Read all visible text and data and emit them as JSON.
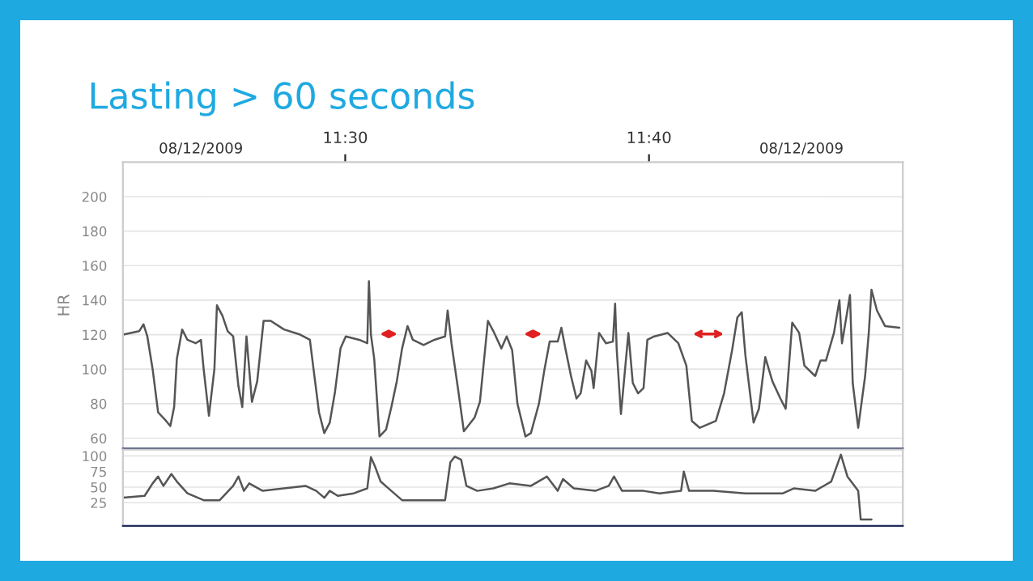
{
  "chart_data": [
    {
      "type": "line",
      "title": "Lasting > 60 seconds",
      "ylabel": "HR",
      "x": [
        11.3781,
        11.3869,
        11.3893,
        11.3914,
        11.3943,
        11.3973,
        11.4017,
        11.404,
        11.4061,
        11.4076,
        11.4105,
        11.4134,
        11.4179,
        11.4208,
        11.4223,
        11.4252,
        11.4282,
        11.4296,
        11.4326,
        11.4355,
        11.4385,
        11.4414,
        11.4435,
        11.4458,
        11.4488,
        11.4517,
        11.4552,
        11.4591,
        11.4664,
        11.4753,
        11.4806,
        11.4826,
        11.4856,
        11.4885,
        11.4915,
        11.4944,
        11.4974,
        11.5003,
        11.5077,
        11.5121,
        11.513,
        11.5141,
        11.5159,
        11.5188,
        11.5224,
        11.5253,
        11.5283,
        11.5312,
        11.5342,
        11.5371,
        11.543,
        11.5489,
        11.5548,
        11.5562,
        11.5583,
        11.5621,
        11.5651,
        11.571,
        11.5739,
        11.5783,
        11.5813,
        11.5857,
        11.5886,
        11.5916,
        11.5945,
        11.5989,
        11.6019,
        11.6063,
        11.6092,
        11.6122,
        11.6166,
        11.6186,
        11.621,
        11.6239,
        11.6269,
        11.6292,
        11.6322,
        11.6351,
        11.6363,
        11.6393,
        11.6431,
        11.6469,
        11.6481,
        11.649,
        11.6513,
        11.6554,
        11.6578,
        11.6607,
        11.6637,
        11.6658,
        11.6696,
        11.6769,
        11.6828,
        11.6872,
        11.6902,
        11.6946,
        11.7034,
        11.7079,
        11.7123,
        11.7152,
        11.7176,
        11.7196,
        11.7241,
        11.727,
        11.7305,
        11.7344,
        11.7388,
        11.7417,
        11.7453,
        11.7491,
        11.752,
        11.7579,
        11.7608,
        11.7638,
        11.7682,
        11.7712,
        11.7726,
        11.7756,
        11.777,
        11.7785,
        11.7815,
        11.7853,
        11.7873,
        11.7888,
        11.7918,
        11.7962,
        11.8041
      ],
      "series": [
        {
          "color": "#555555",
          "values": [
            120,
            122,
            126,
            119,
            100,
            75,
            70,
            67,
            78,
            106,
            123,
            117,
            115,
            117,
            100,
            73,
            100,
            137,
            131,
            122,
            119,
            90,
            78,
            119,
            81,
            93,
            128,
            128,
            123,
            120,
            117,
            100,
            75,
            63,
            69,
            87,
            112,
            119,
            117,
            115,
            151,
            120,
            106,
            61,
            65,
            78,
            93,
            112,
            125,
            117,
            114,
            117,
            119,
            134,
            115,
            87,
            64,
            72,
            81,
            128,
            122,
            112,
            119,
            111,
            80,
            61,
            63,
            80,
            99,
            116,
            116,
            124,
            111,
            96,
            83,
            86,
            105,
            99,
            89,
            121,
            115,
            116,
            138,
            111,
            74,
            121,
            92,
            86,
            89,
            117,
            119,
            121,
            115,
            102,
            70,
            66,
            70,
            86,
            111,
            130,
            133,
            108,
            69,
            77,
            107,
            93,
            83,
            77,
            127,
            121,
            102,
            96,
            105,
            105,
            121,
            140,
            115,
            134,
            143,
            92,
            66,
            96,
            121,
            146,
            134,
            125,
            124
          ]
        }
      ],
      "xlim": [
        11.378,
        11.806
      ],
      "ylim": [
        54,
        220
      ],
      "xticks": [
        {
          "value": 11.5,
          "label": "11:30"
        },
        {
          "value": 11.6667,
          "label": "11:40"
        }
      ],
      "yticks": [
        60,
        80,
        100,
        120,
        140,
        160,
        180,
        200
      ],
      "grid": "y",
      "annotations": [
        "08/12/2009",
        "08/12/2009"
      ]
    },
    {
      "type": "line",
      "x": [
        11.3781,
        11.3899,
        11.3943,
        11.3973,
        11.4002,
        11.4046,
        11.4076,
        11.4134,
        11.4223,
        11.4311,
        11.4385,
        11.4414,
        11.4444,
        11.4473,
        11.4547,
        11.4664,
        11.4782,
        11.4841,
        11.4885,
        11.4915,
        11.4959,
        11.5047,
        11.5121,
        11.5141,
        11.5165,
        11.5194,
        11.5253,
        11.5312,
        11.5548,
        11.5577,
        11.5601,
        11.5636,
        11.5665,
        11.5724,
        11.5813,
        11.5901,
        11.6019,
        11.6107,
        11.6166,
        11.6195,
        11.6254,
        11.6372,
        11.6446,
        11.6475,
        11.6519,
        11.6637,
        11.6725,
        11.6843,
        11.6858,
        11.6887,
        11.702,
        11.7196,
        11.7402,
        11.7461,
        11.7579,
        11.7667,
        11.772,
        11.7756,
        11.7815,
        11.7829,
        11.7888
      ],
      "series": [
        {
          "color": "#555555",
          "values": [
            33,
            36,
            56,
            67,
            52,
            71,
            59,
            40,
            29,
            29,
            52,
            67,
            44,
            56,
            44,
            48,
            52,
            44,
            33,
            44,
            36,
            40,
            48,
            98,
            82,
            59,
            44,
            29,
            29,
            90,
            99,
            94,
            52,
            44,
            48,
            56,
            52,
            67,
            44,
            63,
            48,
            44,
            52,
            67,
            44,
            44,
            40,
            44,
            75,
            44,
            44,
            40,
            40,
            48,
            44,
            59,
            102,
            67,
            44,
            -2,
            -2
          ]
        }
      ],
      "xlim": [
        11.378,
        11.806
      ],
      "ylim": [
        -12,
        110
      ],
      "yticks": [
        25,
        50,
        75,
        100
      ],
      "grid": "y",
      "tick_labels": "y"
    }
  ]
}
